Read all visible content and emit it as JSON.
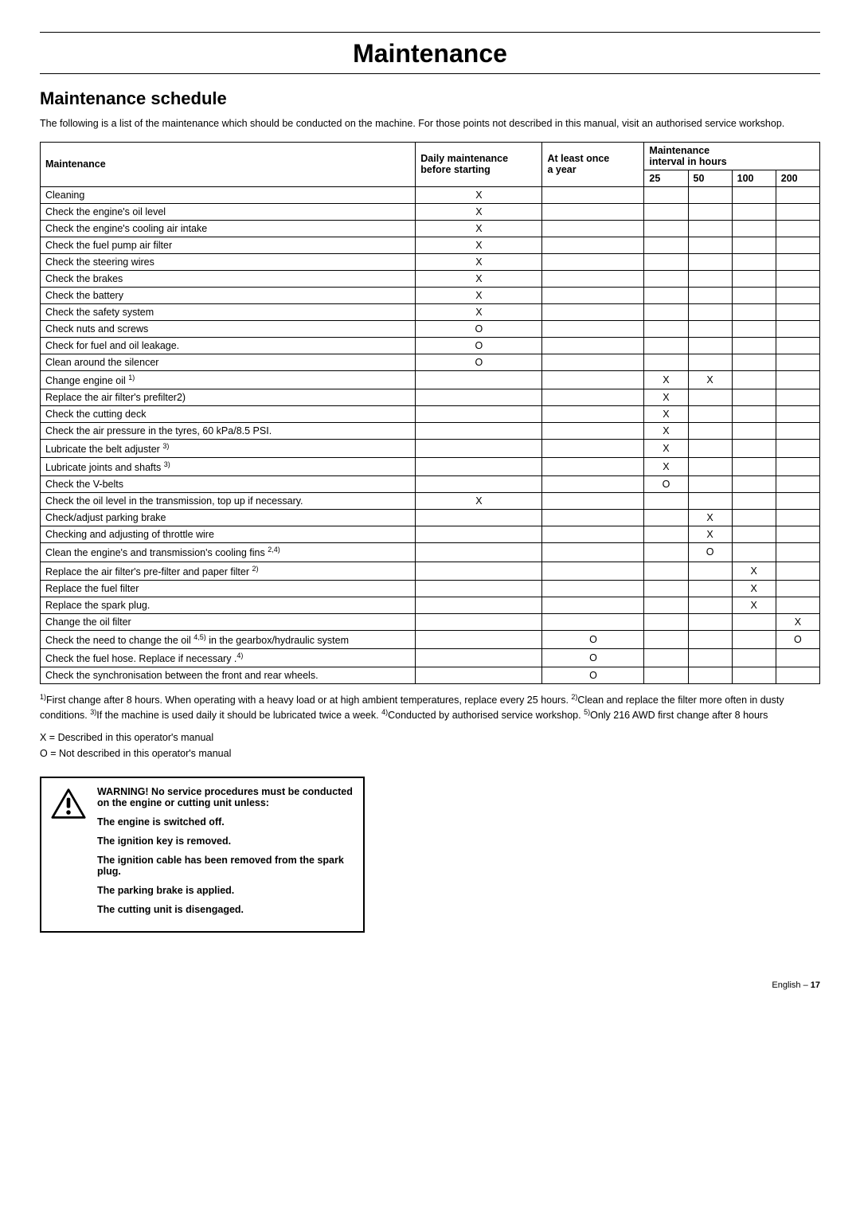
{
  "page": {
    "title": "Maintenance",
    "section_title": "Maintenance schedule",
    "intro": "The following is a list of the maintenance which should be conducted on the machine. For those points not described in this manual, visit an authorised service workshop.",
    "footer_label": "English",
    "footer_page": "17"
  },
  "table": {
    "headers": {
      "maintenance": "Maintenance",
      "daily_line1": "Daily maintenance",
      "daily_line2": "before starting",
      "once_line1": "At least once",
      "once_line2": "a year",
      "interval_line1": "Maintenance",
      "interval_line2": "interval in hours",
      "h25": "25",
      "h50": "50",
      "h100": "100",
      "h200": "200"
    },
    "rows": [
      {
        "task": "Cleaning",
        "daily": "X",
        "year": "",
        "h25": "",
        "h50": "",
        "h100": "",
        "h200": ""
      },
      {
        "task": "Check the engine's oil level",
        "daily": "X",
        "year": "",
        "h25": "",
        "h50": "",
        "h100": "",
        "h200": ""
      },
      {
        "task": "Check the engine's cooling air intake",
        "daily": "X",
        "year": "",
        "h25": "",
        "h50": "",
        "h100": "",
        "h200": ""
      },
      {
        "task": "Check the fuel pump air filter",
        "daily": "X",
        "year": "",
        "h25": "",
        "h50": "",
        "h100": "",
        "h200": ""
      },
      {
        "task": "Check the steering wires",
        "daily": "X",
        "year": "",
        "h25": "",
        "h50": "",
        "h100": "",
        "h200": ""
      },
      {
        "task": "Check the brakes",
        "daily": "X",
        "year": "",
        "h25": "",
        "h50": "",
        "h100": "",
        "h200": ""
      },
      {
        "task": "Check the battery",
        "daily": "X",
        "year": "",
        "h25": "",
        "h50": "",
        "h100": "",
        "h200": ""
      },
      {
        "task": "Check the safety system",
        "daily": "X",
        "year": "",
        "h25": "",
        "h50": "",
        "h100": "",
        "h200": ""
      },
      {
        "task": "Check nuts and screws",
        "daily": "O",
        "year": "",
        "h25": "",
        "h50": "",
        "h100": "",
        "h200": ""
      },
      {
        "task": "Check for fuel and oil leakage.",
        "daily": "O",
        "year": "",
        "h25": "",
        "h50": "",
        "h100": "",
        "h200": ""
      },
      {
        "task": "Clean around the silencer",
        "daily": "O",
        "year": "",
        "h25": "",
        "h50": "",
        "h100": "",
        "h200": ""
      },
      {
        "task": "Change engine oil <sup>1)</sup>",
        "daily": "",
        "year": "",
        "h25": "X",
        "h50": "X",
        "h100": "",
        "h200": ""
      },
      {
        "task": "Replace the air filter's prefilter2)",
        "daily": "",
        "year": "",
        "h25": "X",
        "h50": "",
        "h100": "",
        "h200": ""
      },
      {
        "task": "Check the cutting deck",
        "daily": "",
        "year": "",
        "h25": "X",
        "h50": "",
        "h100": "",
        "h200": ""
      },
      {
        "task": "Check the air pressure in the tyres, 60 kPa/8.5 PSI.",
        "daily": "",
        "year": "",
        "h25": "X",
        "h50": "",
        "h100": "",
        "h200": ""
      },
      {
        "task": "Lubricate the belt adjuster <sup>3)</sup>",
        "daily": "",
        "year": "",
        "h25": "X",
        "h50": "",
        "h100": "",
        "h200": ""
      },
      {
        "task": "Lubricate joints and shafts <sup>3)</sup>",
        "daily": "",
        "year": "",
        "h25": "X",
        "h50": "",
        "h100": "",
        "h200": ""
      },
      {
        "task": "Check the V-belts",
        "daily": "",
        "year": "",
        "h25": "O",
        "h50": "",
        "h100": "",
        "h200": ""
      },
      {
        "task": "Check the oil level in the transmission, top up if necessary.",
        "daily": "X",
        "year": "",
        "h25": "",
        "h50": "",
        "h100": "",
        "h200": ""
      },
      {
        "task": "Check/adjust parking brake",
        "daily": "",
        "year": "",
        "h25": "",
        "h50": "X",
        "h100": "",
        "h200": ""
      },
      {
        "task": "Checking and adjusting of throttle wire",
        "daily": "",
        "year": "",
        "h25": "",
        "h50": "X",
        "h100": "",
        "h200": ""
      },
      {
        "task": "Clean the engine's and transmission's cooling fins <sup>2,4)</sup>",
        "daily": "",
        "year": "",
        "h25": "",
        "h50": "O",
        "h100": "",
        "h200": ""
      },
      {
        "task": "Replace the air filter's pre-filter and paper filter <sup>2)</sup>",
        "daily": "",
        "year": "",
        "h25": "",
        "h50": "",
        "h100": "X",
        "h200": ""
      },
      {
        "task": "Replace the fuel filter",
        "daily": "",
        "year": "",
        "h25": "",
        "h50": "",
        "h100": "X",
        "h200": ""
      },
      {
        "task": "Replace the spark plug.",
        "daily": "",
        "year": "",
        "h25": "",
        "h50": "",
        "h100": "X",
        "h200": ""
      },
      {
        "task": "Change the oil filter",
        "daily": "",
        "year": "",
        "h25": "",
        "h50": "",
        "h100": "",
        "h200": "X"
      },
      {
        "task": "Check the need to change the oil <sup>4,5)</sup> in the gearbox/hydraulic system",
        "daily": "",
        "year": "O",
        "h25": "",
        "h50": "",
        "h100": "",
        "h200": "O"
      },
      {
        "task": "Check the fuel hose. Replace if necessary .<sup>4)</sup>",
        "daily": "",
        "year": "O",
        "h25": "",
        "h50": "",
        "h100": "",
        "h200": ""
      },
      {
        "task": "Check the synchronisation between the front and rear wheels.",
        "daily": "",
        "year": "O",
        "h25": "",
        "h50": "",
        "h100": "",
        "h200": ""
      }
    ]
  },
  "footnotes": "<sup>1)</sup>First change after 8 hours. When operating with a heavy load or at high ambient temperatures, replace every 25 hours. <sup>2)</sup>Clean and replace the filter more often in dusty conditions. <sup>3)</sup>If the machine is used daily it should be lubricated twice a week. <sup>4)</sup>Conducted by authorised service workshop. <sup>5)</sup>Only 216 AWD first change after 8 hours",
  "legend": {
    "x": "X = Described in this operator's manual",
    "o": "O = Not described in this operator's manual"
  },
  "warning": {
    "lines": [
      "WARNING! No service procedures must be conducted on the engine or cutting unit unless:",
      "The engine is switched off.",
      "The ignition key is removed.",
      "The ignition cable has been removed from the spark plug.",
      "The parking brake is applied.",
      "The cutting unit is disengaged."
    ]
  }
}
